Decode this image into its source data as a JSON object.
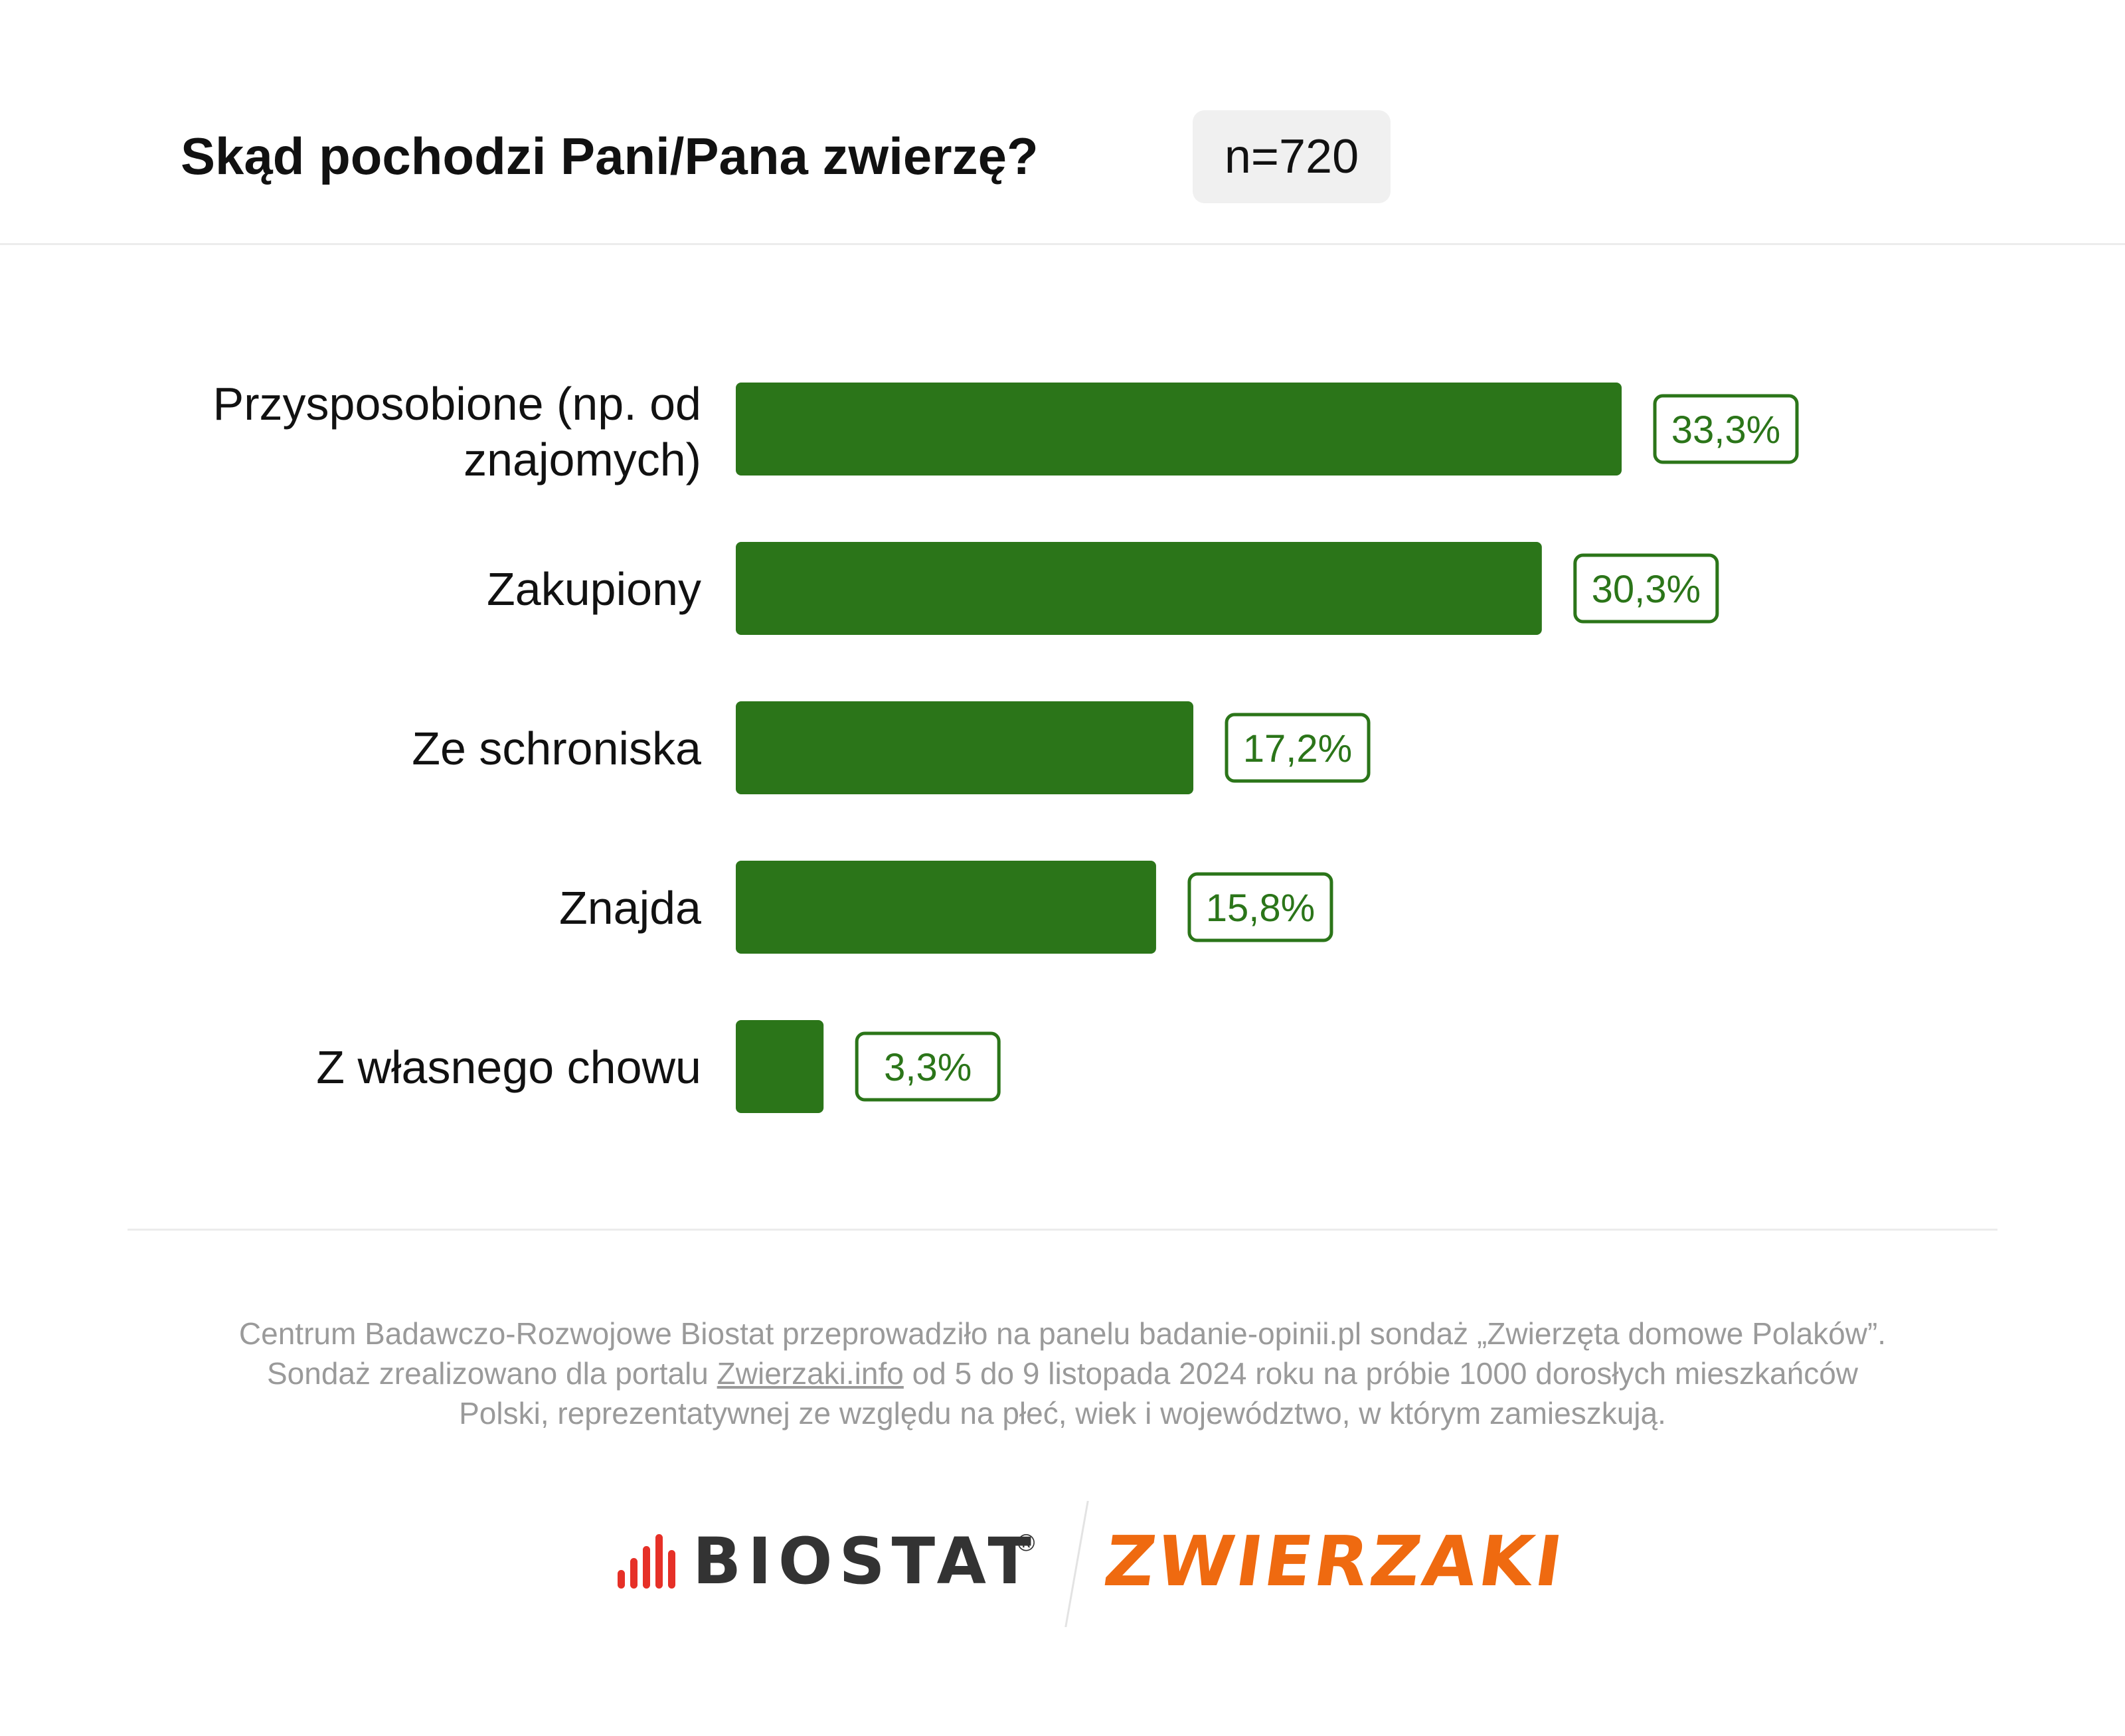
{
  "header": {
    "title": "Skąd pochodzi Pani/Pana zwierzę?",
    "sample": "n=720"
  },
  "colors": {
    "bar": "#2b7519",
    "label_text": "#2b7519",
    "biostat_accent": "#e63027",
    "zwierzaki_orange": "#ef6a10"
  },
  "chart_data": {
    "type": "bar",
    "orientation": "horizontal",
    "categories": [
      "Przysposobione (np. od znajomych)",
      "Zakupiony",
      "Ze schroniska",
      "Znajda",
      "Z własnego chowu"
    ],
    "values": [
      33.3,
      30.3,
      17.2,
      15.8,
      3.3
    ],
    "value_labels": [
      "33,3%",
      "30,3%",
      "17,2%",
      "15,8%",
      "3,3%"
    ],
    "unit": "%",
    "title": "Skąd pochodzi Pani/Pana zwierzę?",
    "xlim": [
      0,
      33.3
    ],
    "grid": false,
    "legend": "none"
  },
  "footnote": {
    "line1": "Centrum Badawczo-Rozwojowe Biostat przeprowadziło na panelu badanie-opinii.pl sondaż „Zwierzęta domowe Polaków”.",
    "line2_before": "Sondaż zrealizowano dla portalu ",
    "line2_link": "Zwierzaki.info",
    "line2_after": " od 5 do 9 listopada 2024 roku na próbie 1000 dorosłych mieszkańców",
    "line3": "Polski, reprezentatywnej ze względu na płeć, wiek i województwo, w którym zamieszkują."
  },
  "logos": {
    "biostat": "BIOSTAT",
    "registered": "®",
    "zwierzaki": "ZWIERZAKI"
  }
}
